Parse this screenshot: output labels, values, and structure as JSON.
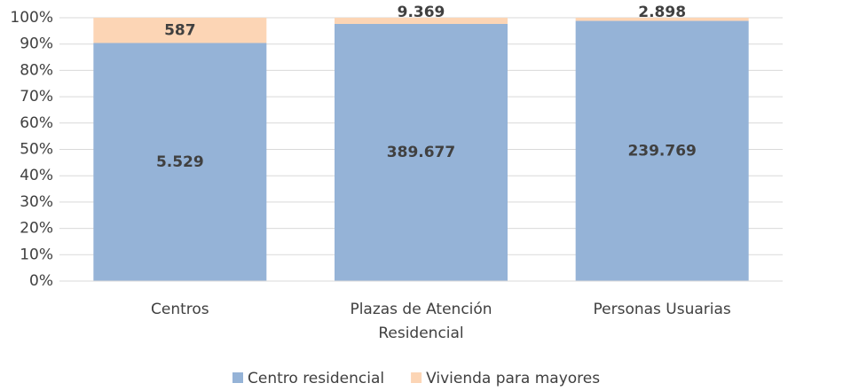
{
  "chart_data": {
    "type": "bar",
    "stacking": "percent",
    "categories": [
      "Centros",
      "Plazas de Atención Residencial",
      "Personas Usuarias"
    ],
    "series": [
      {
        "name": "Centro residencial",
        "color": "#95b3d7",
        "values": [
          5529,
          389677,
          239769
        ],
        "value_labels": [
          "5.529",
          "389.677",
          "239.769"
        ]
      },
      {
        "name": "Vivienda para mayores",
        "color": "#fcd5b5",
        "values": [
          587,
          9369,
          2898
        ],
        "value_labels": [
          "587",
          "9.369",
          "2.898"
        ]
      }
    ],
    "ylim": [
      0,
      100
    ],
    "yticks": [
      {
        "value": 0,
        "label": "0%"
      },
      {
        "value": 10,
        "label": "10%"
      },
      {
        "value": 20,
        "label": "20%"
      },
      {
        "value": 30,
        "label": "30%"
      },
      {
        "value": 40,
        "label": "40%"
      },
      {
        "value": 50,
        "label": "50%"
      },
      {
        "value": 60,
        "label": "60%"
      },
      {
        "value": 70,
        "label": "70%"
      },
      {
        "value": 80,
        "label": "80%"
      },
      {
        "value": 90,
        "label": "90%"
      },
      {
        "value": 100,
        "label": "100%"
      }
    ],
    "grid": true,
    "legend": "bottom"
  }
}
